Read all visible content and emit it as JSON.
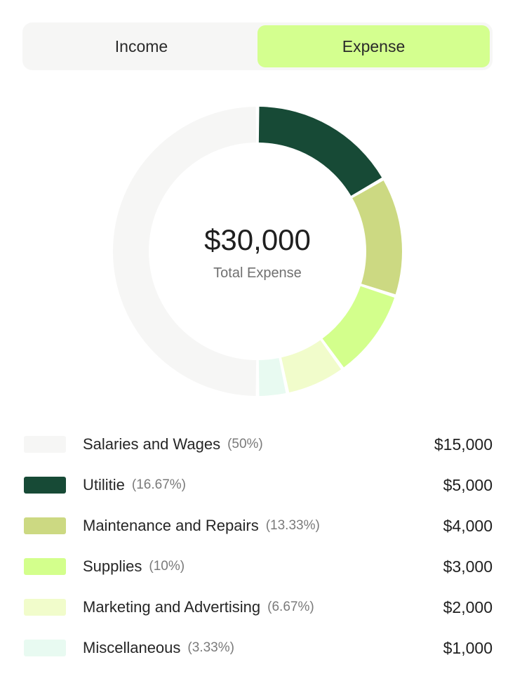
{
  "tabs": {
    "income_label": "Income",
    "expense_label": "Expense",
    "active": "expense"
  },
  "center": {
    "amount": "$30,000",
    "caption": "Total Expense"
  },
  "chart_data": {
    "type": "pie",
    "style": "donut",
    "total": 30000,
    "categories": [
      "Utilitie",
      "Maintenance and Repairs",
      "Supplies",
      "Marketing and Advertising",
      "Miscellaneous",
      "Salaries and Wages"
    ],
    "values": [
      5000,
      4000,
      3000,
      2000,
      1000,
      15000
    ],
    "colors": [
      "#174a36",
      "#ccd982",
      "#d3ff8c",
      "#f1fccb",
      "#e8faf1",
      "#f6f6f5"
    ]
  },
  "legend": [
    {
      "label": "Salaries and Wages",
      "percent": "(50%)",
      "amount": "$15,000",
      "color": "#f6f6f5"
    },
    {
      "label": "Utilitie",
      "percent": "(16.67%)",
      "amount": "$5,000",
      "color": "#174a36"
    },
    {
      "label": "Maintenance and Repairs",
      "percent": "(13.33%)",
      "amount": "$4,000",
      "color": "#ccd982"
    },
    {
      "label": "Supplies",
      "percent": "(10%)",
      "amount": "$3,000",
      "color": "#d3ff8c"
    },
    {
      "label": "Marketing and Advertising",
      "percent": "(6.67%)",
      "amount": "$2,000",
      "color": "#f1fccb"
    },
    {
      "label": "Miscellaneous",
      "percent": "(3.33%)",
      "amount": "$1,000",
      "color": "#e8faf1"
    }
  ]
}
